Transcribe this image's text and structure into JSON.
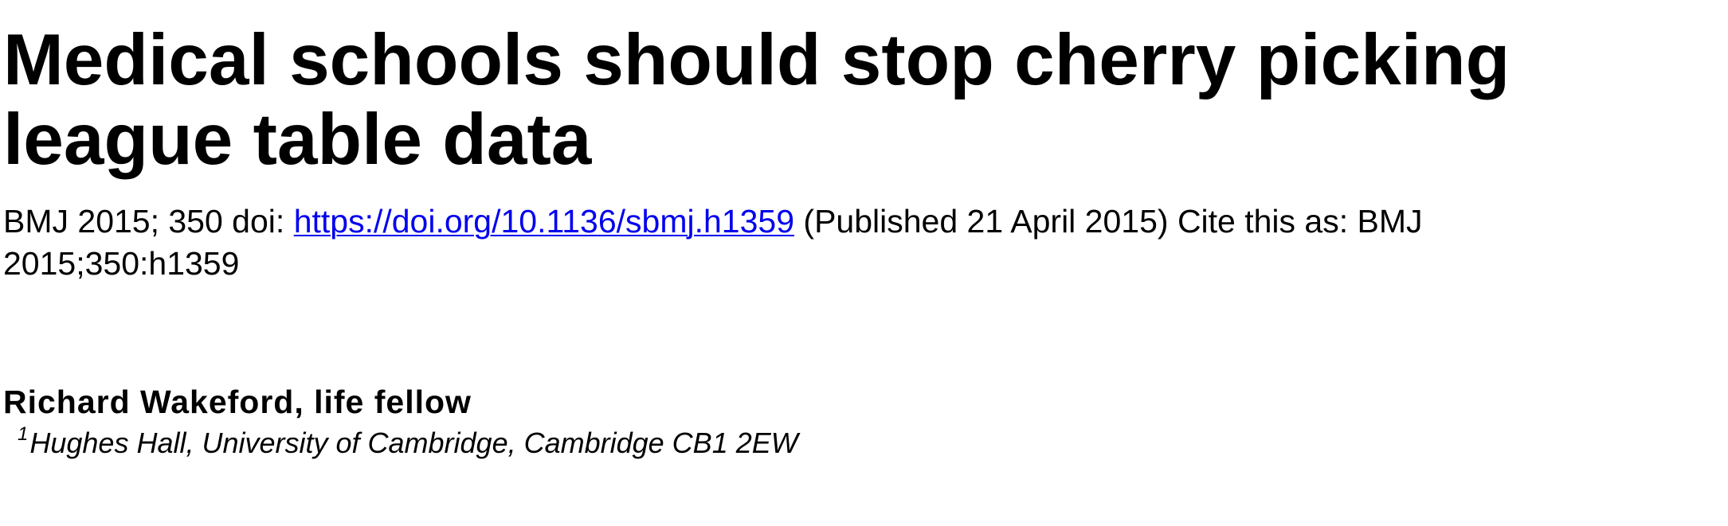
{
  "article": {
    "title": "Medical schools should stop cherry picking league table data",
    "citation_prefix": "BMJ 2015; 350 doi: ",
    "doi_link": "https://doi.org/10.1136/sbmj.h1359",
    "citation_suffix": " (Published 21 April 2015) Cite this as: BMJ 2015;350:h1359"
  },
  "author": {
    "name": "Richard Wakeford, life fellow",
    "affiliation_marker": "1",
    "affiliation": "Hughes Hall, University of Cambridge, Cambridge CB1 2EW"
  }
}
